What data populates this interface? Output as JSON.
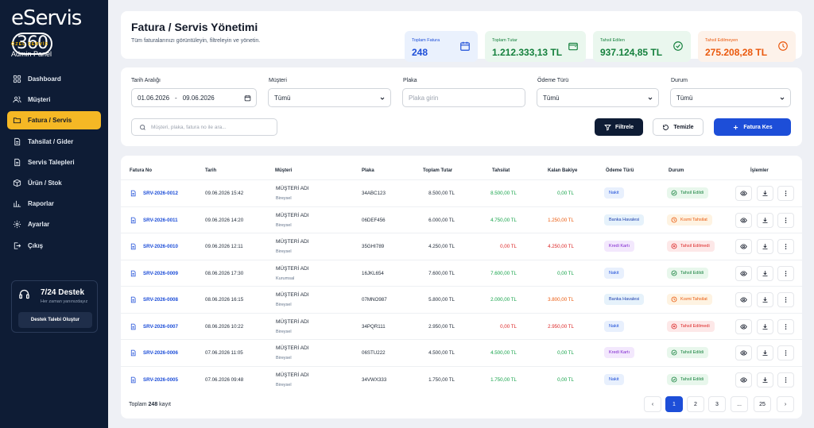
{
  "brand": {
    "name": "eServis",
    "num": "360"
  },
  "sidebar": {
    "subtitle": "ÖZEL SERVİS",
    "panel": "Admin Panel",
    "items": [
      {
        "label": "Dashboard",
        "icon": "grid-icon"
      },
      {
        "label": "Müşteri",
        "icon": "users-icon"
      },
      {
        "label": "Fatura / Servis",
        "icon": "folder-icon"
      },
      {
        "label": "Tahsilat / Gider",
        "icon": "document-icon"
      },
      {
        "label": "Servis Talepleri",
        "icon": "document-icon"
      },
      {
        "label": "Ürün / Stok",
        "icon": "box-icon"
      },
      {
        "label": "Raporlar",
        "icon": "chart-icon"
      },
      {
        "label": "Ayarlar",
        "icon": "gear-icon"
      },
      {
        "label": "Çıkış",
        "icon": "logout-icon"
      }
    ],
    "active_index": 2,
    "support": {
      "title": "7/24 Destek",
      "subtitle": "Her zaman yanınızdayız",
      "button": "Destek Talebi Oluştur"
    }
  },
  "header": {
    "title": "Fatura / Servis Yönetimi",
    "subtitle": "Tüm faturalarınızı görüntüleyin, filtreleyin ve yönetin."
  },
  "stats": [
    {
      "label": "Toplam Fatura",
      "value": "248",
      "color": "#1d4ed8",
      "bg": "#eaf1fd"
    },
    {
      "label": "Toplam Tutar",
      "value": "1.212.333,13 TL",
      "color": "#15803d",
      "bg": "#eaf7ee"
    },
    {
      "label": "Tahsil Edilen",
      "value": "937.124,85 TL",
      "color": "#15803d",
      "bg": "#eaf7ee"
    },
    {
      "label": "Tahsil Edilmeyen",
      "value": "275.208,28 TL",
      "color": "#ea580c",
      "bg": "#fdf2ea"
    }
  ],
  "filters": {
    "date_label": "Tarih Aralığı",
    "date_from": "01.06.2026",
    "date_sep": "-",
    "date_to": "09.06.2026",
    "customer_label": "Müşteri",
    "customer_value": "Tümü",
    "plate_label": "Plaka",
    "plate_placeholder": "Plaka girin",
    "payment_label": "Ödeme Türü",
    "payment_value": "Tümü",
    "status_label": "Durum",
    "status_value": "Tümü",
    "search_placeholder": "Müşteri, plaka, fatura no ile ara...",
    "filter_button": "Filtrele",
    "clear_button": "Temizle",
    "new_button": "Fatura Kes"
  },
  "table": {
    "headers": [
      "Fatura No",
      "Tarih",
      "Müşteri",
      "Plaka",
      "Toplam Tutar",
      "Tahsilat",
      "Kalan Bakiye",
      "Ödeme Türü",
      "Durum",
      "İşlemler"
    ],
    "rows": [
      {
        "no": "SRV-2026-0012",
        "date": "09.06.2026 15:42",
        "customer": "MÜŞTERİ ADI",
        "type": "Bireysel",
        "plate": "34ABC123",
        "total": "8.500,00 TL",
        "paid": "8.500,00 TL",
        "paid_color": "#16a34a",
        "balance": "0,00 TL",
        "balance_color": "#16a34a",
        "payment": "Nakit",
        "status": "Tahsil Edildi",
        "status_kind": "ok"
      },
      {
        "no": "SRV-2026-0011",
        "date": "09.06.2026 14:20",
        "customer": "MÜŞTERİ ADI",
        "type": "Bireysel",
        "plate": "06DEF456",
        "total": "6.000,00 TL",
        "paid": "4.750,00 TL",
        "paid_color": "#16a34a",
        "balance": "1.250,00 TL",
        "balance_color": "#ea580c",
        "payment": "Banka Havalesi",
        "status": "Kısmi Tahsilat",
        "status_kind": "partial"
      },
      {
        "no": "SRV-2026-0010",
        "date": "09.06.2026 12:11",
        "customer": "MÜŞTERİ ADI",
        "type": "Bireysel",
        "plate": "35GHI789",
        "total": "4.250,00 TL",
        "paid": "0,00 TL",
        "paid_color": "#dc2626",
        "balance": "4.250,00 TL",
        "balance_color": "#dc2626",
        "payment": "Kredi Kartı",
        "status": "Tahsil Edilmedi",
        "status_kind": "none"
      },
      {
        "no": "SRV-2026-0009",
        "date": "08.06.2026 17:30",
        "customer": "MÜŞTERİ ADI",
        "type": "Kurumsal",
        "plate": "16JKL654",
        "total": "7.600,00 TL",
        "paid": "7.600,00 TL",
        "paid_color": "#16a34a",
        "balance": "0,00 TL",
        "balance_color": "#16a34a",
        "payment": "Nakit",
        "status": "Tahsil Edildi",
        "status_kind": "ok"
      },
      {
        "no": "SRV-2026-0008",
        "date": "08.06.2026 16:15",
        "customer": "MÜŞTERİ ADI",
        "type": "Bireysel",
        "plate": "07MNO987",
        "total": "5.800,00 TL",
        "paid": "2.000,00 TL",
        "paid_color": "#16a34a",
        "balance": "3.800,00 TL",
        "balance_color": "#ea580c",
        "payment": "Banka Havalesi",
        "status": "Kısmi Tahsilat",
        "status_kind": "partial"
      },
      {
        "no": "SRV-2026-0007",
        "date": "08.06.2026 10:22",
        "customer": "MÜŞTERİ ADI",
        "type": "Bireysel",
        "plate": "34PQR111",
        "total": "2.950,00 TL",
        "paid": "0,00 TL",
        "paid_color": "#dc2626",
        "balance": "2.950,00 TL",
        "balance_color": "#dc2626",
        "payment": "Nakit",
        "status": "Tahsil Edilmedi",
        "status_kind": "none"
      },
      {
        "no": "SRV-2026-0006",
        "date": "07.06.2026 11:05",
        "customer": "MÜŞTERİ ADI",
        "type": "Bireysel",
        "plate": "06STU222",
        "total": "4.500,00 TL",
        "paid": "4.500,00 TL",
        "paid_color": "#16a34a",
        "balance": "0,00 TL",
        "balance_color": "#16a34a",
        "payment": "Kredi Kartı",
        "status": "Tahsil Edildi",
        "status_kind": "ok"
      },
      {
        "no": "SRV-2026-0005",
        "date": "07.06.2026 09:48",
        "customer": "MÜŞTERİ ADI",
        "type": "Bireysel",
        "plate": "34VWX333",
        "total": "1.750,00 TL",
        "paid": "1.750,00 TL",
        "paid_color": "#16a34a",
        "balance": "0,00 TL",
        "balance_color": "#16a34a",
        "payment": "Nakit",
        "status": "Tahsil Edildi",
        "status_kind": "ok"
      }
    ]
  },
  "footer": {
    "total_prefix": "Toplam",
    "total_count": "248",
    "total_suffix": "kayıt"
  },
  "pagination": {
    "prev": "‹",
    "pages": [
      "1",
      "2",
      "3",
      "...",
      "25"
    ],
    "next": "›",
    "current": "1"
  }
}
